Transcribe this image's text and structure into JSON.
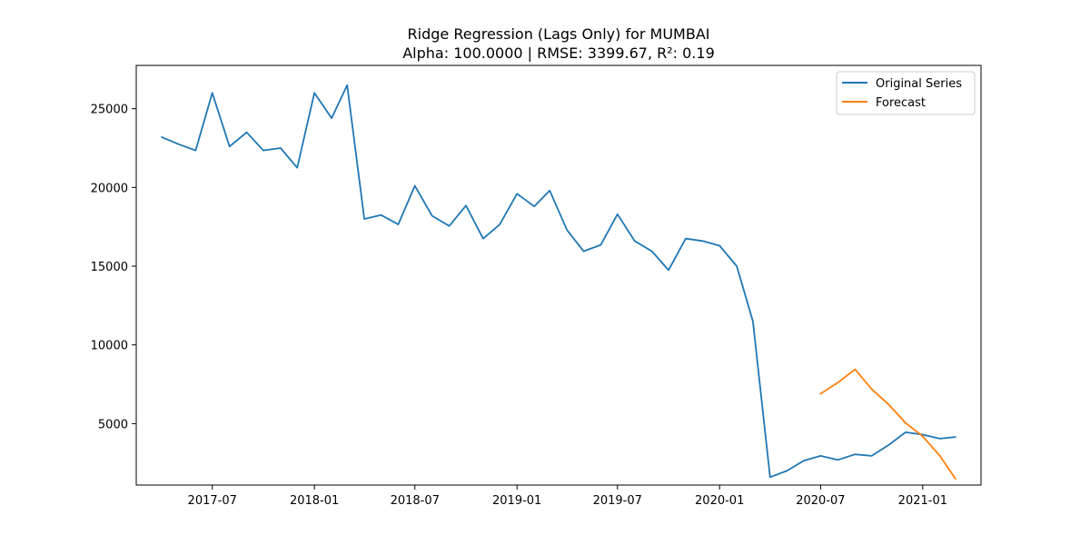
{
  "chart_data": {
    "type": "line",
    "title": "Ridge Regression (Lags Only) for MUMBAI",
    "subtitle": "Alpha: 100.0000 | RMSE: 3399.67, R²: 0.19",
    "xlabel": "",
    "ylabel": "",
    "x_ticks": [
      "2017-07",
      "2018-01",
      "2018-07",
      "2019-01",
      "2019-07",
      "2020-01",
      "2020-07",
      "2021-01"
    ],
    "y_ticks": [
      5000,
      10000,
      15000,
      20000,
      25000
    ],
    "xlim": [
      "2017-02-14",
      "2021-04-16"
    ],
    "ylim": [
      1100,
      27750
    ],
    "grid": false,
    "legend_position": "top-right",
    "series": [
      {
        "name": "Original Series",
        "color": "#1f77b4",
        "x": [
          "2017-04",
          "2017-05",
          "2017-06",
          "2017-07",
          "2017-08",
          "2017-09",
          "2017-10",
          "2017-11",
          "2017-12",
          "2018-01",
          "2018-02",
          "2018-03",
          "2018-04",
          "2018-05",
          "2018-06",
          "2018-07",
          "2018-08",
          "2018-09",
          "2018-10",
          "2018-11",
          "2018-12",
          "2019-01",
          "2019-02",
          "2019-03",
          "2019-04",
          "2019-05",
          "2019-06",
          "2019-07",
          "2019-08",
          "2019-09",
          "2019-10",
          "2019-11",
          "2019-12",
          "2020-01",
          "2020-02",
          "2020-03",
          "2020-04",
          "2020-05",
          "2020-06",
          "2020-07",
          "2020-08",
          "2020-09",
          "2020-10",
          "2020-11",
          "2020-12",
          "2021-01",
          "2021-02",
          "2021-03"
        ],
        "values": [
          23200,
          22750,
          22350,
          26000,
          22600,
          23500,
          22350,
          22500,
          21250,
          26000,
          24400,
          26500,
          18000,
          18250,
          17650,
          20100,
          18200,
          17550,
          18850,
          16750,
          17650,
          19600,
          18800,
          19800,
          17300,
          15950,
          16350,
          18300,
          16600,
          15950,
          14750,
          16750,
          16600,
          16300,
          15000,
          11500,
          1600,
          2000,
          2650,
          2950,
          2700,
          3050,
          2950,
          3650,
          4450,
          4300,
          4050,
          4150
        ]
      },
      {
        "name": "Forecast",
        "color": "#ff7f0e",
        "x": [
          "2020-07",
          "2020-08",
          "2020-09",
          "2020-10",
          "2020-11",
          "2020-12",
          "2021-01",
          "2021-02",
          "2021-03"
        ],
        "values": [
          6900,
          7600,
          8450,
          7200,
          6200,
          5050,
          4200,
          2950,
          1500
        ]
      }
    ]
  }
}
